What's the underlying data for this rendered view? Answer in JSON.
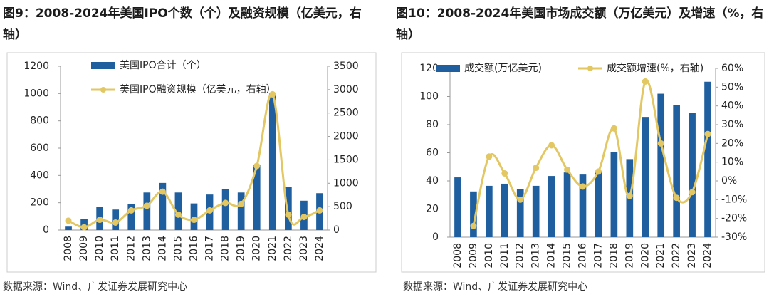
{
  "chart_data": [
    {
      "type": "combo",
      "title": "图9：2008-2024年美国IPO个数（个）及融资规模（亿美元，右轴）",
      "source": "数据来源：Wind、广发证券发展研究中心",
      "categories": [
        "2008",
        "2009",
        "2010",
        "2011",
        "2012",
        "2013",
        "2014",
        "2015",
        "2016",
        "2017",
        "2018",
        "2019",
        "2020",
        "2021",
        "2022",
        "2023",
        "2024"
      ],
      "series": [
        {
          "name": "美国IPO合计（个）",
          "color": "#1f5f9f",
          "type": "bar",
          "values": [
            25,
            80,
            170,
            150,
            190,
            275,
            345,
            275,
            195,
            260,
            300,
            275,
            480,
            1000,
            315,
            215,
            270
          ]
        },
        {
          "name": "美国IPO融资规模（亿美元，右轴）",
          "color": "#e2c763",
          "type": "line",
          "axis": "y2",
          "values": [
            200,
            60,
            220,
            160,
            420,
            520,
            820,
            330,
            220,
            420,
            580,
            560,
            1370,
            2900,
            330,
            280,
            420
          ]
        }
      ],
      "ylim": [
        0,
        1200
      ],
      "yticks": [
        0,
        200,
        400,
        600,
        800,
        1000,
        1200
      ],
      "y2lim": [
        0,
        3500
      ],
      "y2ticks": [
        0,
        500,
        1000,
        1500,
        2000,
        2500,
        3000,
        3500
      ]
    },
    {
      "type": "combo",
      "title": "图10：2008-2024年美国市场成交额（万亿美元）及增速（%，右轴）",
      "source": "数据来源：Wind、广发证券发展研究中心",
      "categories": [
        "2008",
        "2009",
        "2010",
        "2011",
        "2012",
        "2013",
        "2014",
        "2015",
        "2016",
        "2017",
        "2018",
        "2019",
        "2020",
        "2021",
        "2022",
        "2023",
        "2024"
      ],
      "series": [
        {
          "name": "成交额(万亿美元)",
          "color": "#1f5f9f",
          "type": "bar",
          "values": [
            42.5,
            32.5,
            36.5,
            38,
            34,
            36.5,
            43.5,
            46,
            44.5,
            47,
            60.5,
            55.5,
            85.5,
            102,
            94,
            88.5,
            110.5
          ]
        },
        {
          "name": "成交额增速(%，右轴)",
          "color": "#e2c763",
          "type": "line",
          "axis": "y2",
          "values": [
            null,
            -24,
            13,
            4,
            -10,
            7,
            19,
            6,
            -3,
            5,
            28,
            -8,
            53,
            20,
            -9,
            -6,
            25
          ]
        }
      ],
      "ylim": [
        0,
        120
      ],
      "yticks": [
        0,
        20,
        40,
        60,
        80,
        100,
        120
      ],
      "y2lim": [
        -30,
        60
      ],
      "y2ticks": [
        {
          "value": -30,
          "label": "-30%"
        },
        {
          "value": -20,
          "label": "-20%"
        },
        {
          "value": -10,
          "label": "-10%"
        },
        {
          "value": 0,
          "label": "0%"
        },
        {
          "value": 10,
          "label": "10%"
        },
        {
          "value": 20,
          "label": "20%"
        },
        {
          "value": 30,
          "label": "30%"
        },
        {
          "value": 40,
          "label": "40%"
        },
        {
          "value": 50,
          "label": "50%"
        },
        {
          "value": 60,
          "label": "60%"
        }
      ]
    }
  ]
}
